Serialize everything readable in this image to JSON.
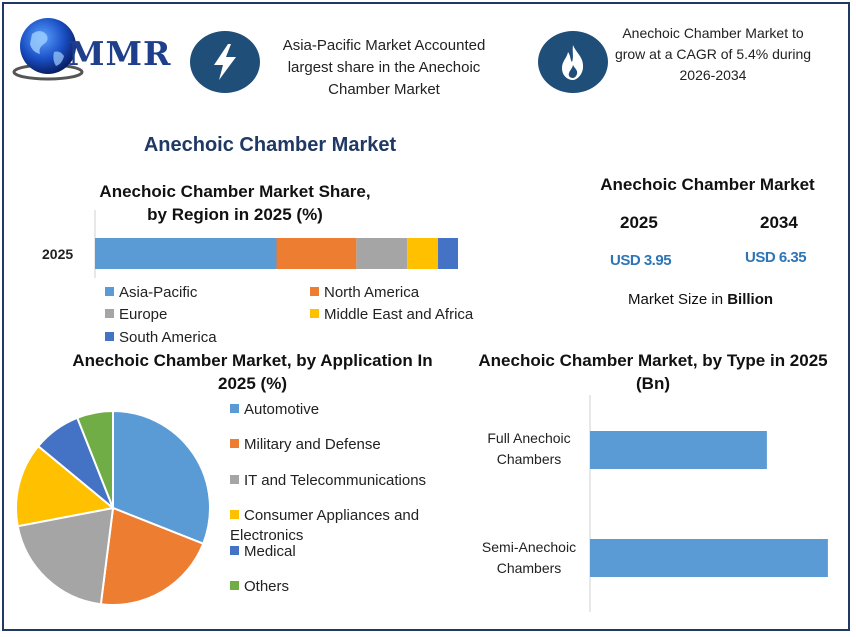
{
  "header": {
    "brand": "MMR",
    "banner_left": "Asia-Pacific Market Accounted largest share in the Anechoic Chamber Market",
    "banner_right": "Anechoic Chamber Market to grow at a CAGR of  5.4% during 2026-2034",
    "icon_left": "lightning-bolt-icon",
    "icon_right": "flame-icon"
  },
  "main_title": "Anechoic Chamber Market",
  "market_size": {
    "title": "Anechoic Chamber Market",
    "years": [
      "2025",
      "2034"
    ],
    "values": [
      "USD 3.95",
      "USD 6.35"
    ],
    "note_prefix": "Market Size in ",
    "note_bold": "Billion"
  },
  "colors": {
    "blue": "#5b9bd5",
    "orange": "#ed7d31",
    "gray": "#a5a5a5",
    "yellow": "#ffc000",
    "darkblue": "#4472c4",
    "green": "#70ad47",
    "frame": "#1f3864",
    "icon_bg": "#1f4e79"
  },
  "chart_data": [
    {
      "type": "bar",
      "orientation": "horizontal-stacked",
      "title": "Anechoic Chamber Market Share, by Region in 2025 (%)",
      "categories": [
        "2025"
      ],
      "series": [
        {
          "name": "Asia-Pacific",
          "values": [
            50
          ]
        },
        {
          "name": "North America",
          "values": [
            22
          ]
        },
        {
          "name": "Europe",
          "values": [
            14
          ]
        },
        {
          "name": "Middle East and Africa",
          "values": [
            8.5
          ]
        },
        {
          "name": "South America",
          "values": [
            5.5
          ]
        }
      ],
      "xlim": [
        0,
        100
      ],
      "legend": "bottom"
    },
    {
      "type": "pie",
      "title": "Anechoic Chamber Market, by Application In 2025 (%)",
      "labels": [
        "Automotive",
        "Military and Defense",
        "IT and Telecommunications",
        "Consumer Appliances and Electronics",
        "Medical",
        "Others"
      ],
      "values": [
        31,
        21,
        20,
        14,
        8,
        6
      ],
      "legend": "right"
    },
    {
      "type": "bar",
      "orientation": "horizontal",
      "title": "Anechoic Chamber Market, by Type in 2025 (Bn)",
      "categories": [
        "Full Anechoic Chambers",
        "Semi-Anechoic Chambers"
      ],
      "category_lines": [
        [
          "Full Anechoic",
          "Chambers"
        ],
        [
          "Semi-Anechoic",
          "Chambers"
        ]
      ],
      "values": [
        1.45,
        1.95
      ],
      "xlim": [
        0,
        2
      ]
    }
  ]
}
